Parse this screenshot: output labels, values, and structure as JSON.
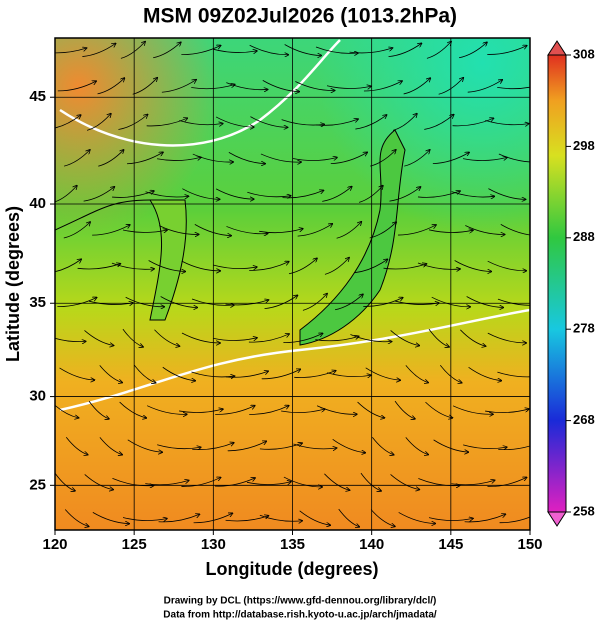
{
  "chart_data": {
    "type": "map",
    "title": "MSM 09Z02Jul2026 (1013.2hPa)",
    "x_label": "Longitude (degrees)",
    "y_label": "Latitude  (degrees)",
    "xlim": [
      120,
      150
    ],
    "ylim": [
      22.4,
      47.6
    ],
    "xticks": [
      120,
      125,
      130,
      135,
      140,
      145,
      150
    ],
    "yticks": [
      25,
      30,
      35,
      40,
      45
    ],
    "colorbar": {
      "lim": [
        258,
        308
      ],
      "ticks": [
        258,
        268,
        278,
        288,
        298,
        308
      ]
    },
    "credits": [
      "Drawing by DCL (https://www.gfd-dennou.org/library/dcl/)",
      "Data from http://database.rish.kyoto-u.ac.jp/arch/jmadata/"
    ]
  }
}
